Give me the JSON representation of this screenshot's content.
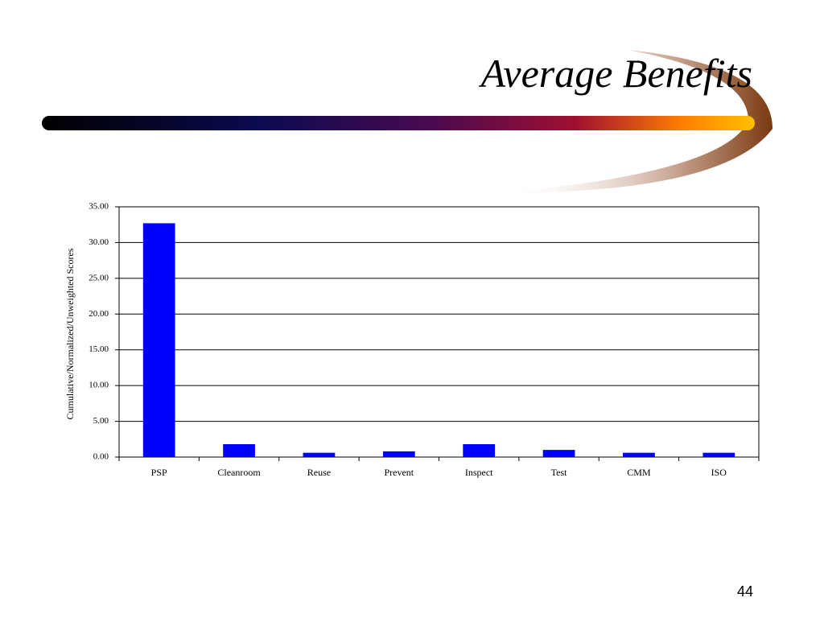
{
  "title": "Average Benefits",
  "page_number": "44",
  "chart_data": {
    "type": "bar",
    "y_label": "Cumulative/Normalized/Unweighted Scores",
    "categories": [
      "PSP",
      "Cleanroom",
      "Reuse",
      "Prevent",
      "Inspect",
      "Test",
      "CMM",
      "ISO"
    ],
    "values": [
      32.7,
      1.8,
      0.6,
      0.8,
      1.8,
      1.0,
      0.6,
      0.6
    ],
    "color": "#0000ff",
    "ylim": [
      0,
      35
    ],
    "yticks": [
      {
        "value": 0,
        "label": "0.00"
      },
      {
        "value": 5,
        "label": "5.00"
      },
      {
        "value": 10,
        "label": "10.00"
      },
      {
        "value": 15,
        "label": "15.00"
      },
      {
        "value": 20,
        "label": "20.00"
      },
      {
        "value": 25,
        "label": "25.00"
      },
      {
        "value": 30,
        "label": "30.00"
      },
      {
        "value": 35,
        "label": "35.00"
      }
    ],
    "grid": true
  }
}
